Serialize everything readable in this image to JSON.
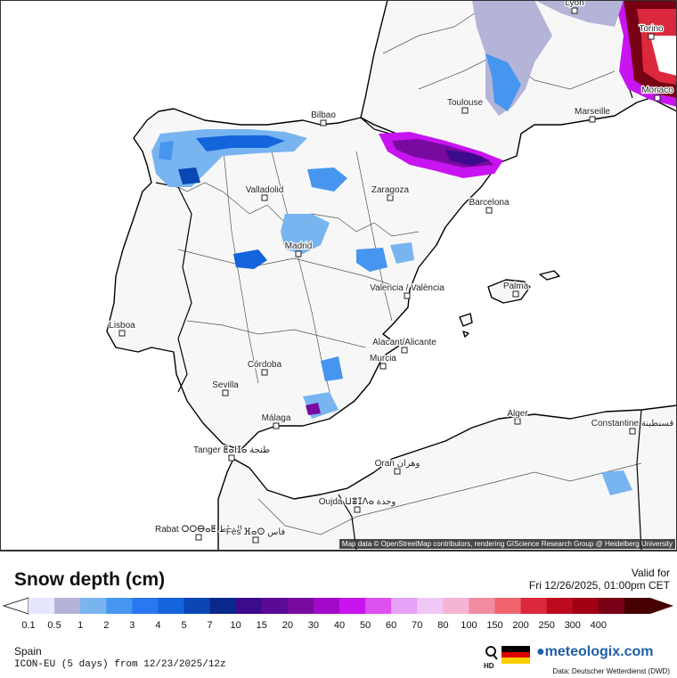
{
  "map": {
    "cities": [
      {
        "name": "Lyon"
      },
      {
        "name": "Torino"
      },
      {
        "name": "Monaco"
      },
      {
        "name": "Marseille"
      },
      {
        "name": "Toulouse"
      },
      {
        "name": "Bilbao"
      },
      {
        "name": "Valladolid"
      },
      {
        "name": "Zaragoza"
      },
      {
        "name": "Barcelona"
      },
      {
        "name": "Madrid"
      },
      {
        "name": "Valencia / València"
      },
      {
        "name": "Palma"
      },
      {
        "name": "Lisboa"
      },
      {
        "name": "Alacant/Alicante"
      },
      {
        "name": "Murcia"
      },
      {
        "name": "Córdoba"
      },
      {
        "name": "Sevilla"
      },
      {
        "name": "Málaga"
      },
      {
        "name": "Alger"
      },
      {
        "name": "Constantine قسنطينة"
      },
      {
        "name": "Tanger ⵟⴰⵏⵊⴰ طنجة"
      },
      {
        "name": "Oran وهران"
      },
      {
        "name": "Oujda ⵡⴻⵊⴷⴰ وجدة"
      },
      {
        "name": "Rabat ⵔⵔⴱⴰⵟ الرباط"
      },
      {
        "name": "Fès ⴼⴰⵙ فاس"
      }
    ],
    "attribution": "Map data © OpenStreetMap contributors, rendering GIScience Research Group @ Heidelberg University"
  },
  "panel": {
    "title": "Snow depth (cm)",
    "valid_label": "Valid for",
    "valid_value": "Fri 12/26/2025, 01:00pm CET",
    "region": "Spain",
    "model": "ICON-EU (5 days) from 12/23/2025/12z",
    "brand": "meteologix.com",
    "source": "Data: Deutscher Wetterdienst (DWD)"
  },
  "legend": {
    "labels": [
      "0.1",
      "0.5",
      "1",
      "2",
      "3",
      "4",
      "5",
      "7",
      "10",
      "15",
      "20",
      "30",
      "40",
      "50",
      "60",
      "70",
      "80",
      "100",
      "150",
      "200",
      "250",
      "300",
      "400"
    ],
    "colors": [
      "#e6e6ff",
      "#b4b4d8",
      "#78b4f0",
      "#4696f0",
      "#2878f0",
      "#1464dc",
      "#0a46b4",
      "#0a288c",
      "#3c0a8c",
      "#5a0a96",
      "#780aa0",
      "#a00ac8",
      "#c814f0",
      "#dc50f0",
      "#e6a0f5",
      "#f0c8f5",
      "#f5b4d2",
      "#f08ca0",
      "#f0646e",
      "#dc283c",
      "#be0a1e",
      "#a00014",
      "#780014",
      "#460000"
    ]
  },
  "icons": {
    "hd": "magnifier-hd-icon",
    "flag": "germany-flag-icon",
    "logo": "meteologix-logo-icon"
  }
}
